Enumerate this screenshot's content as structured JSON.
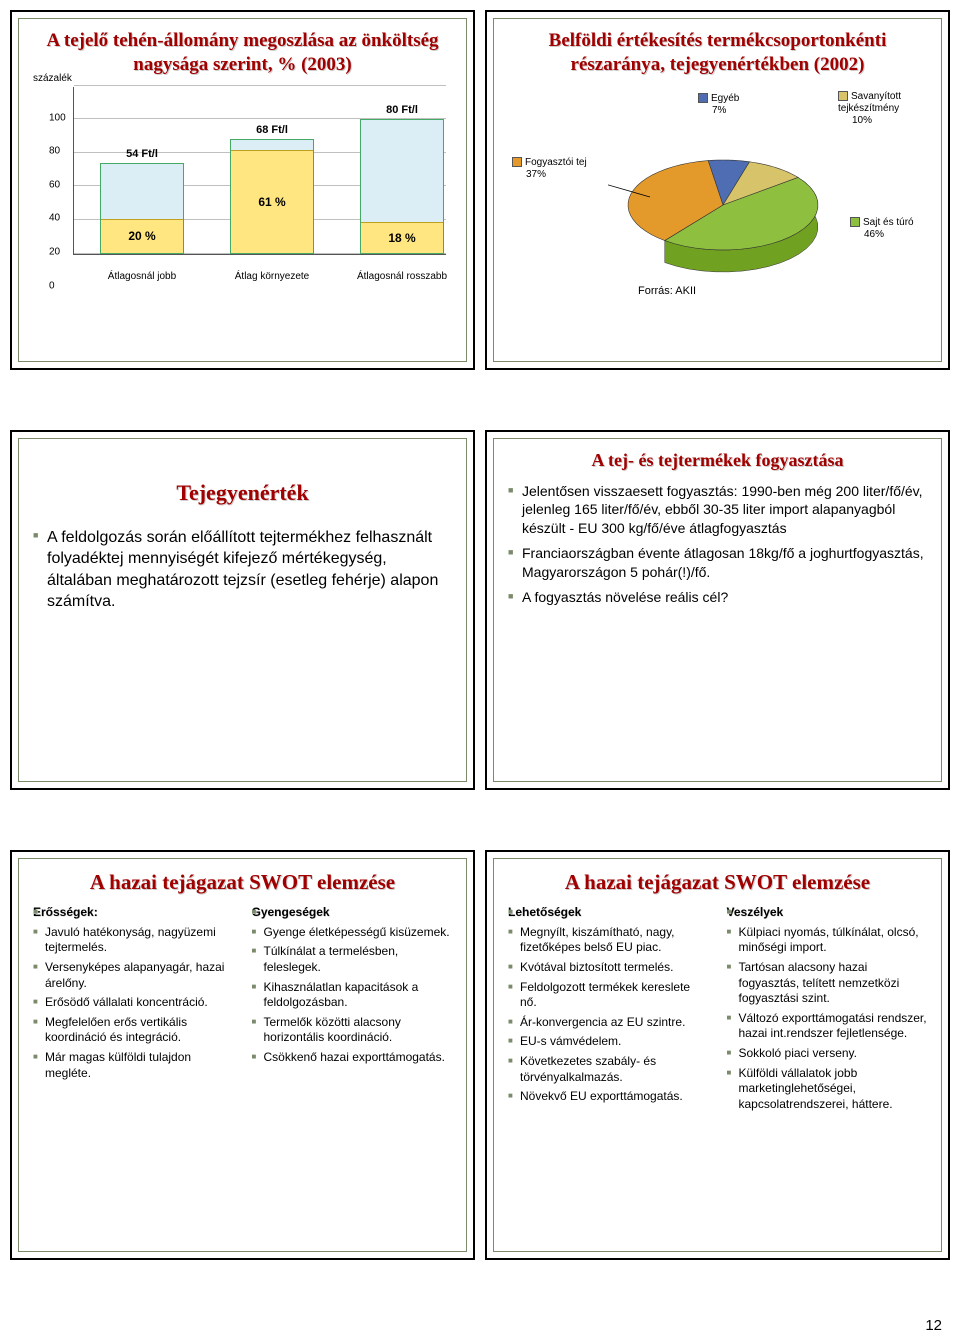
{
  "slide1": {
    "title": "A tejelő tehén-állomány megoszlása az önköltség nagysága szerint, % (2003)",
    "ylabel": "százalék",
    "ymax": 100,
    "ytick_step": 20,
    "categories": [
      "Átlagosnál jobb",
      "Átlag környezete",
      "Átlagosnál rosszabb"
    ],
    "top_labels": [
      "54 Ft/l",
      "68 Ft/l",
      "80 Ft/l"
    ],
    "values_total": [
      54,
      68,
      80
    ],
    "inner_pct": [
      20,
      61,
      18
    ],
    "inner_labels": [
      "20 %",
      "61 %",
      "18 %"
    ],
    "bar_fill": "#dbeef5",
    "inner_fill": "#ffe680",
    "grid_color": "#c0c0c0"
  },
  "slide2": {
    "title": "Belföldi értékesítés termékcsoportonkénti részaránya, tejegyenértékben (2002)",
    "legend": [
      {
        "label": "Egyéb",
        "pct": "7%",
        "color": "#4f6db3"
      },
      {
        "label": "Savanyított tejkészítmény",
        "pct": "10%",
        "color": "#d6c36a"
      },
      {
        "label": "Sajt és túró",
        "pct": "46%",
        "color": "#8fbf3f"
      },
      {
        "label": "Fogyasztói tej",
        "pct": "37%",
        "color": "#e39a2b"
      }
    ],
    "source": "Forrás: AKII"
  },
  "slide3": {
    "title": "Tejegyenérték",
    "body": "A feldolgozás során előállított tejtermékhez felhasznált folyadéktej mennyiségét kifejező mértékegység, általában meghatározott tejzsír (esetleg fehérje) alapon számítva."
  },
  "slide4": {
    "title": "A tej- és tejtermékek fogyasztása",
    "items": [
      "Jelentősen visszaesett fogyasztás: 1990-ben még 200 liter/fő/év, jelenleg 165 liter/fő/év, ebből 30-35 liter import alapanyagból készült - EU 300 kg/fő/éve átlagfogyasztás",
      "Franciaországban évente átlagosan 18kg/fő a joghurtfogyasztás, Magyarországon 5 pohár(!)/fő.",
      "A fogyasztás növelése reális cél?"
    ]
  },
  "slide5": {
    "title": "A hazai tejágazat SWOT elemzése",
    "col1_head": "Erősségek:",
    "col1": [
      "Javuló hatékonyság, nagyüzemi tejtermelés.",
      "Versenyképes alapanyagár, hazai árelőny.",
      "Erősödő vállalati koncentráció.",
      "Megfelelően erős vertikális koordináció és integráció.",
      "Már magas külföldi tulajdon megléte."
    ],
    "col2_head": "Gyengeségek",
    "col2": [
      "Gyenge életképességű kisüzemek.",
      "Túlkínálat a termelésben, feleslegek.",
      "Kihasználatlan kapacitások a feldolgozásban.",
      "Termelők közötti alacsony horizontális koordináció.",
      "Csökkenő hazai exporttámogatás."
    ]
  },
  "slide6": {
    "title": "A hazai tejágazat SWOT elemzése",
    "col1_head": "Lehetőségek",
    "col1": [
      "Megnyílt, kiszámítható, nagy, fizetőképes belső EU piac.",
      "Kvótával biztosított termelés.",
      "Feldolgozott termékek kereslete nő.",
      "Ár-konvergencia az EU szintre.",
      "EU-s vámvédelem.",
      "Következetes szabály- és törvényalkalmazás.",
      "Növekvő EU exporttámogatás."
    ],
    "col2_head": "Veszélyek",
    "col2": [
      "Külpiaci nyomás, túlkínálat, olcsó, minőségi import.",
      "Tartósan alacsony hazai fogyasztás, telített nemzetközi fogyasztási szint.",
      "Változó exporttámogatási rendszer, hazai int.rendszer fejletlensége.",
      "Sokkoló piaci verseny.",
      "Külföldi vállalatok jobb marketinglehetőségei, kapcsolatrendszerei, háttere."
    ]
  },
  "pagenum": "12"
}
